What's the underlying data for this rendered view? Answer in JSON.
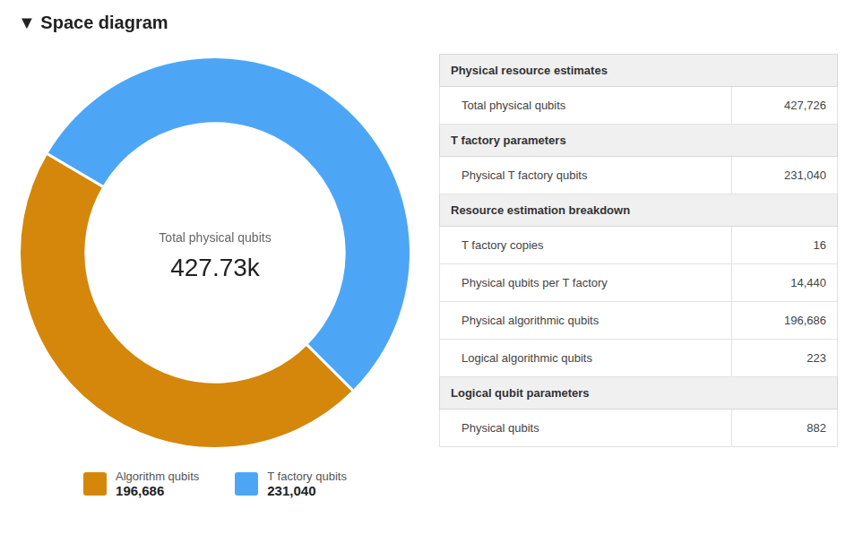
{
  "chart_data": {
    "type": "doughnut",
    "title": "▼ Space diagram",
    "categories": [
      "Algorithm qubits",
      "T factory qubits"
    ],
    "values": [
      196686,
      231040
    ],
    "value_labels": [
      "196,686",
      "231,040"
    ],
    "colors": [
      "#d4870a",
      "#4da6f5"
    ],
    "center_label": "Total physical qubits",
    "center_value": "427.73k",
    "legend": "bottom",
    "table": [
      {
        "header": "Physical resource estimates",
        "rows": [
          [
            "Total physical qubits",
            "427,726"
          ]
        ]
      },
      {
        "header": "T factory parameters",
        "rows": [
          [
            "Physical T factory qubits",
            "231,040"
          ]
        ]
      },
      {
        "header": "Resource estimation breakdown",
        "rows": [
          [
            "T factory copies",
            "16"
          ],
          [
            "Physical qubits per T factory",
            "14,440"
          ],
          [
            "Physical algorithmic qubits",
            "196,686"
          ],
          [
            "Logical algorithmic qubits",
            "223"
          ]
        ]
      },
      {
        "header": "Logical qubit parameters",
        "rows": [
          [
            "Physical qubits",
            "882"
          ]
        ]
      }
    ]
  }
}
